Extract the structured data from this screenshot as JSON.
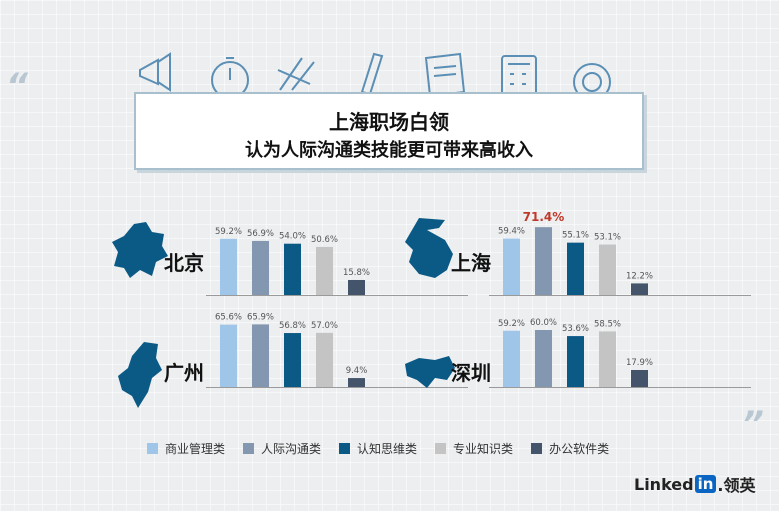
{
  "title": {
    "line1": "上海职场白领",
    "line2": "认为人际沟通类技能更可带来高收入"
  },
  "quotes": {
    "left": "“",
    "right": "”"
  },
  "legend": [
    {
      "label": "商业管理类",
      "color": "#9fc5e8"
    },
    {
      "label": "人际沟通类",
      "color": "#8497b0"
    },
    {
      "label": "认知思维类",
      "color": "#0b5a86"
    },
    {
      "label": "专业知识类",
      "color": "#c4c4c4"
    },
    {
      "label": "办公软件类",
      "color": "#44546a"
    }
  ],
  "brand": {
    "pre": "Linked",
    "in": "in",
    "post": ".领英"
  },
  "highlight_color": "#c0392b",
  "chart_data": {
    "type": "bar",
    "unit": "%",
    "series_names": [
      "商业管理类",
      "人际沟通类",
      "认知思维类",
      "专业知识类",
      "办公软件类"
    ],
    "panels": [
      {
        "city": "北京",
        "values": [
          59.2,
          56.9,
          54.0,
          50.6,
          15.8
        ],
        "labels": [
          "59.2%",
          "56.9%",
          "54.0%",
          "50.6%",
          "15.8%"
        ],
        "highlight": -1
      },
      {
        "city": "上海",
        "values": [
          59.4,
          71.4,
          55.1,
          53.1,
          12.2
        ],
        "labels": [
          "59.4%",
          "71.4%",
          "55.1%",
          "53.1%",
          "12.2%"
        ],
        "highlight": 1
      },
      {
        "city": "广州",
        "values": [
          65.6,
          65.9,
          56.8,
          57.0,
          9.4
        ],
        "labels": [
          "65.6%",
          "65.9%",
          "56.8%",
          "57.0%",
          "9.4%"
        ],
        "highlight": -1
      },
      {
        "city": "深圳",
        "values": [
          59.2,
          60.0,
          53.6,
          58.5,
          17.9
        ],
        "labels": [
          "59.2%",
          "60.0%",
          "53.6%",
          "58.5%",
          "17.9%"
        ],
        "highlight": -1
      }
    ]
  }
}
